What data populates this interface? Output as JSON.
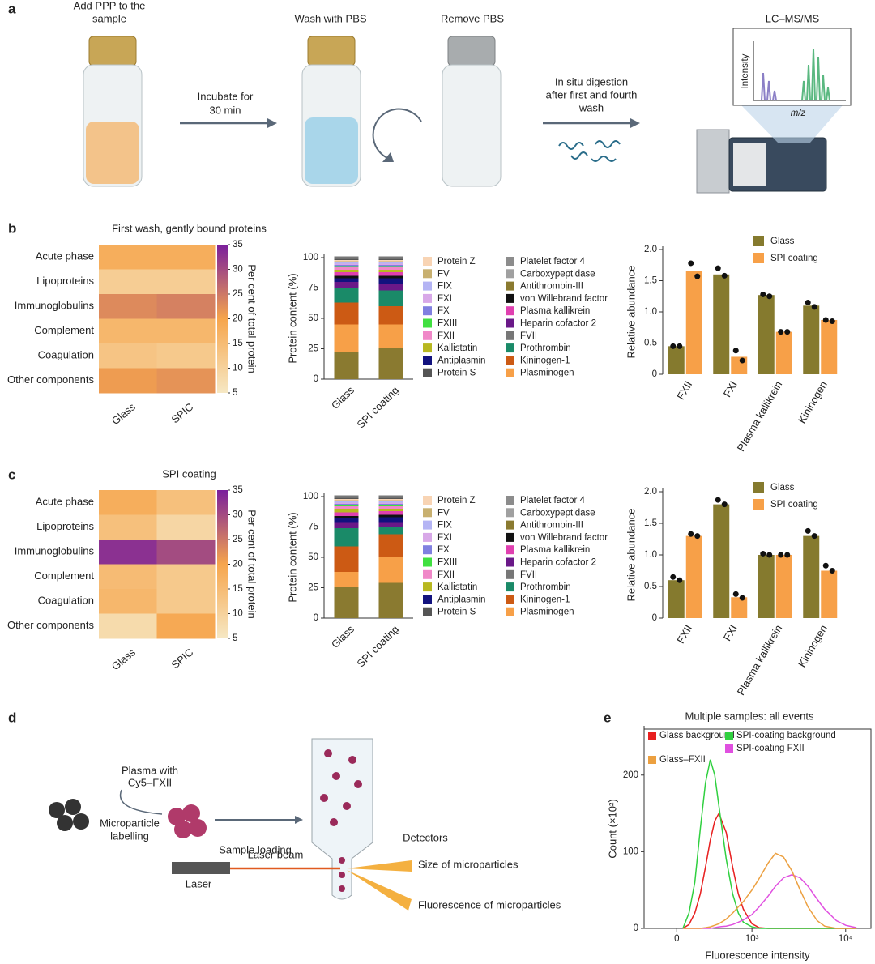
{
  "panel_labels": [
    "a",
    "b",
    "c",
    "d",
    "e"
  ],
  "workflow": {
    "add_sample": [
      "Add PPP to the",
      "sample"
    ],
    "incubate": [
      "Incubate for",
      "30 min"
    ],
    "wash": "Wash with PBS",
    "remove": "Remove PBS",
    "digestion": [
      "In situ digestion",
      "after first and fourth",
      "wash"
    ],
    "instrument": "LC–MS/MS",
    "inset_ylabel": "Intensity",
    "inset_xlabel": "m/z"
  },
  "cytometry": {
    "plasma": [
      "Plasma with",
      "Cy5–FXII"
    ],
    "labelling": [
      "Microparticle",
      "labelling"
    ],
    "loading": "Sample loading",
    "detectors": "Detectors",
    "laser_beam": "Laser beam",
    "laser": "Laser",
    "size": "Size of microparticles",
    "fluorescence": "Fluorescence of microparticles"
  },
  "chart_data": [
    {
      "type": "heatmap",
      "title": "First wash, gently bound proteins",
      "rows": [
        "Acute phase",
        "Lipoproteins",
        "Immunoglobulins",
        "Complement",
        "Coagulation",
        "Other components"
      ],
      "columns": [
        "Glass",
        "SPIC"
      ],
      "values": [
        [
          18,
          18
        ],
        [
          11,
          11
        ],
        [
          23,
          24
        ],
        [
          16,
          16
        ],
        [
          13,
          12
        ],
        [
          21,
          22
        ]
      ],
      "clim": [
        5,
        35
      ],
      "cticks": [
        5,
        10,
        15,
        20,
        25,
        30,
        35
      ],
      "colorbar_label": "Per cent of total protein",
      "colormap": [
        "#f6e8c4",
        "#f6a54c",
        "#7a1f9c"
      ]
    },
    {
      "type": "stacked_bar",
      "ylabel": "Protein content (%)",
      "categories": [
        "Glass",
        "SPI coating"
      ],
      "ylim": [
        0,
        100
      ],
      "yticks": [
        0,
        25,
        50,
        75,
        100
      ],
      "series": [
        {
          "name": "Antithrombin-III",
          "color": "#8a7a30",
          "values": [
            22,
            26
          ]
        },
        {
          "name": "Plasminogen",
          "color": "#f7a048",
          "values": [
            23,
            19
          ]
        },
        {
          "name": "Kininogen-1",
          "color": "#cc5a14",
          "values": [
            18,
            15
          ]
        },
        {
          "name": "Prothrombin",
          "color": "#1a8a68",
          "values": [
            12,
            13
          ]
        },
        {
          "name": "Heparin cofactor 2",
          "color": "#6a1888",
          "values": [
            5,
            5
          ]
        },
        {
          "name": "Antiplasmin",
          "color": "#12127e",
          "values": [
            3,
            5
          ]
        },
        {
          "name": "von Willebrand factor",
          "color": "#111111",
          "values": [
            2,
            2
          ]
        },
        {
          "name": "Plasma kallikrein",
          "color": "#e040b0",
          "values": [
            3,
            3
          ]
        },
        {
          "name": "Kallistatin",
          "color": "#b8b820",
          "values": [
            2,
            2
          ]
        },
        {
          "name": "FXII",
          "color": "#f088c8",
          "values": [
            2,
            2
          ]
        },
        {
          "name": "FXIII",
          "color": "#40e040",
          "values": [
            1,
            1
          ]
        },
        {
          "name": "FX",
          "color": "#8080e0",
          "values": [
            1,
            1
          ]
        },
        {
          "name": "FXI",
          "color": "#d8a8e8",
          "values": [
            1,
            1
          ]
        },
        {
          "name": "FIX",
          "color": "#b4b4f4",
          "values": [
            1,
            1
          ]
        },
        {
          "name": "FV",
          "color": "#c8b070",
          "values": [
            1,
            1
          ]
        },
        {
          "name": "Protein Z",
          "color": "#f8d4b4",
          "values": [
            1,
            1
          ]
        },
        {
          "name": "Protein S",
          "color": "#555555",
          "values": [
            1,
            1
          ]
        },
        {
          "name": "Platelet factor 4",
          "color": "#8c8c8c",
          "values": [
            0.5,
            0.5
          ]
        },
        {
          "name": "Carboxypeptidase",
          "color": "#a0a0a0",
          "values": [
            0.5,
            0.5
          ]
        },
        {
          "name": "FVII",
          "color": "#777777",
          "values": [
            1,
            1
          ]
        }
      ]
    },
    {
      "type": "bar",
      "ylabel": "Relative abundance",
      "categories": [
        "FXII",
        "FXI",
        "Plasma kallikrein",
        "Kininogen"
      ],
      "ylim": [
        0,
        2
      ],
      "yticks": [
        0,
        0.5,
        {
          "value": 1,
          "label": "1.0"
        },
        1.5,
        {
          "value": 2,
          "label": "2.0"
        }
      ],
      "series": [
        {
          "name": "Glass",
          "color": "#857a2e",
          "values": [
            0.45,
            1.6,
            1.27,
            1.1
          ],
          "points": [
            [
              0.45,
              0.45
            ],
            [
              1.7,
              1.58
            ],
            [
              1.28,
              1.25
            ],
            [
              1.15,
              1.08
            ]
          ]
        },
        {
          "name": "SPI coating",
          "color": "#f7a048",
          "values": [
            1.65,
            0.28,
            0.68,
            0.87
          ],
          "points": [
            [
              1.78,
              1.57
            ],
            [
              0.38,
              0.22
            ],
            [
              0.68,
              0.68
            ],
            [
              0.87,
              0.85
            ]
          ]
        }
      ]
    },
    {
      "type": "heatmap",
      "title": "SPI coating",
      "rows": [
        "Acute phase",
        "Lipoproteins",
        "Immunoglobulins",
        "Complement",
        "Coagulation",
        "Other components"
      ],
      "columns": [
        "Glass",
        "SPIC"
      ],
      "values": [
        [
          18,
          14
        ],
        [
          14,
          9
        ],
        [
          33,
          30
        ],
        [
          15,
          12
        ],
        [
          16,
          12
        ],
        [
          8,
          19
        ]
      ],
      "clim": [
        5,
        35
      ],
      "cticks": [
        5,
        10,
        15,
        20,
        25,
        30,
        35
      ],
      "colorbar_label": "Per cent of total protein",
      "colormap": [
        "#f6e8c4",
        "#f6a54c",
        "#7a1f9c"
      ]
    },
    {
      "type": "stacked_bar",
      "ylabel": "Protein content (%)",
      "categories": [
        "Glass",
        "SPI coating"
      ],
      "ylim": [
        0,
        100
      ],
      "yticks": [
        0,
        25,
        50,
        75,
        100
      ],
      "series": [
        {
          "name": "Antithrombin-III",
          "color": "#8a7a30",
          "values": [
            26,
            29
          ]
        },
        {
          "name": "Plasminogen",
          "color": "#f7a048",
          "values": [
            12,
            21
          ]
        },
        {
          "name": "Kininogen-1",
          "color": "#cc5a14",
          "values": [
            21,
            19
          ]
        },
        {
          "name": "Prothrombin",
          "color": "#1a8a68",
          "values": [
            15,
            6
          ]
        },
        {
          "name": "Heparin cofactor 2",
          "color": "#6a1888",
          "values": [
            5,
            4
          ]
        },
        {
          "name": "Antiplasmin",
          "color": "#12127e",
          "values": [
            3,
            4
          ]
        },
        {
          "name": "von Willebrand factor",
          "color": "#111111",
          "values": [
            2,
            2
          ]
        },
        {
          "name": "Plasma kallikrein",
          "color": "#e040b0",
          "values": [
            3,
            3
          ]
        },
        {
          "name": "Kallistatin",
          "color": "#b8b820",
          "values": [
            3,
            2
          ]
        },
        {
          "name": "FXII",
          "color": "#f088c8",
          "values": [
            2,
            2
          ]
        },
        {
          "name": "FXIII",
          "color": "#40e040",
          "values": [
            1,
            1
          ]
        },
        {
          "name": "FX",
          "color": "#8080e0",
          "values": [
            1,
            1
          ]
        },
        {
          "name": "FXI",
          "color": "#d8a8e8",
          "values": [
            1,
            1
          ]
        },
        {
          "name": "FIX",
          "color": "#b4b4f4",
          "values": [
            1,
            1
          ]
        },
        {
          "name": "FV",
          "color": "#c8b070",
          "values": [
            1,
            1
          ]
        },
        {
          "name": "Protein Z",
          "color": "#f8d4b4",
          "values": [
            1,
            1
          ]
        },
        {
          "name": "Protein S",
          "color": "#555555",
          "values": [
            1,
            1
          ]
        },
        {
          "name": "Platelet factor 4",
          "color": "#8c8c8c",
          "values": [
            0.5,
            0.5
          ]
        },
        {
          "name": "Carboxypeptidase",
          "color": "#a0a0a0",
          "values": [
            0.5,
            0.5
          ]
        },
        {
          "name": "FVII",
          "color": "#777777",
          "values": [
            1,
            1
          ]
        }
      ]
    },
    {
      "type": "bar",
      "ylabel": "Relative abundance",
      "categories": [
        "FXII",
        "FXI",
        "Plasma kallikrein",
        "Kininogen"
      ],
      "ylim": [
        0,
        2
      ],
      "yticks": [
        0,
        0.5,
        {
          "value": 1,
          "label": "1.0"
        },
        1.5,
        {
          "value": 2,
          "label": "2.0"
        }
      ],
      "series": [
        {
          "name": "Glass",
          "color": "#857a2e",
          "values": [
            0.6,
            1.8,
            1.0,
            1.3
          ],
          "points": [
            [
              0.65,
              0.6
            ],
            [
              1.87,
              1.8
            ],
            [
              1.02,
              1.0
            ],
            [
              1.38,
              1.3
            ]
          ]
        },
        {
          "name": "SPI coating",
          "color": "#f7a048",
          "values": [
            1.3,
            0.33,
            1.0,
            0.75
          ],
          "points": [
            [
              1.33,
              1.3
            ],
            [
              0.38,
              0.32
            ],
            [
              1.0,
              1.0
            ],
            [
              0.83,
              0.75
            ]
          ]
        }
      ]
    },
    {
      "type": "line",
      "title": "Multiple samples: all events",
      "xlabel": "Fluorescence intensity",
      "ylabel": "Count (×10²)",
      "xscale": "biexponential",
      "xlim": [
        -290,
        18500
      ],
      "xticks": [
        0,
        {
          "value": 1000,
          "label": "10³"
        },
        {
          "value": 10000,
          "label": "10⁴"
        }
      ],
      "ylim": [
        0,
        260
      ],
      "yticks": [
        0,
        100,
        200
      ],
      "x": [
        50,
        100,
        150,
        200,
        250,
        300,
        350,
        400,
        500,
        600,
        700,
        800,
        1000,
        1200,
        1500,
        1800,
        2200,
        2700,
        3300,
        4000,
        5000,
        6000,
        8000,
        10000,
        13000
      ],
      "series": [
        {
          "name": "Glass background",
          "color": "#e82020",
          "values": [
            0,
            5,
            20,
            45,
            80,
            115,
            140,
            150,
            125,
            80,
            45,
            25,
            6,
            1,
            0,
            0,
            0,
            0,
            0,
            0,
            0,
            0,
            0,
            0,
            0
          ]
        },
        {
          "name": "SPI-coating background",
          "color": "#30d040",
          "values": [
            0,
            20,
            60,
            130,
            190,
            220,
            200,
            160,
            90,
            45,
            20,
            8,
            2,
            0,
            0,
            0,
            0,
            0,
            0,
            0,
            0,
            0,
            0,
            0,
            0
          ]
        },
        {
          "name": "SPI-coating FXII",
          "color": "#e050e0",
          "values": [
            0,
            0,
            0,
            0,
            0,
            0,
            1,
            2,
            3,
            5,
            8,
            11,
            18,
            28,
            42,
            55,
            66,
            70,
            66,
            55,
            38,
            25,
            10,
            4,
            1
          ]
        },
        {
          "name": "Glass–FXII",
          "color": "#eca040",
          "values": [
            0,
            0,
            0,
            0,
            1,
            2,
            4,
            6,
            12,
            20,
            28,
            35,
            50,
            65,
            85,
            98,
            93,
            75,
            50,
            28,
            10,
            3,
            0,
            0,
            0
          ]
        }
      ]
    }
  ]
}
